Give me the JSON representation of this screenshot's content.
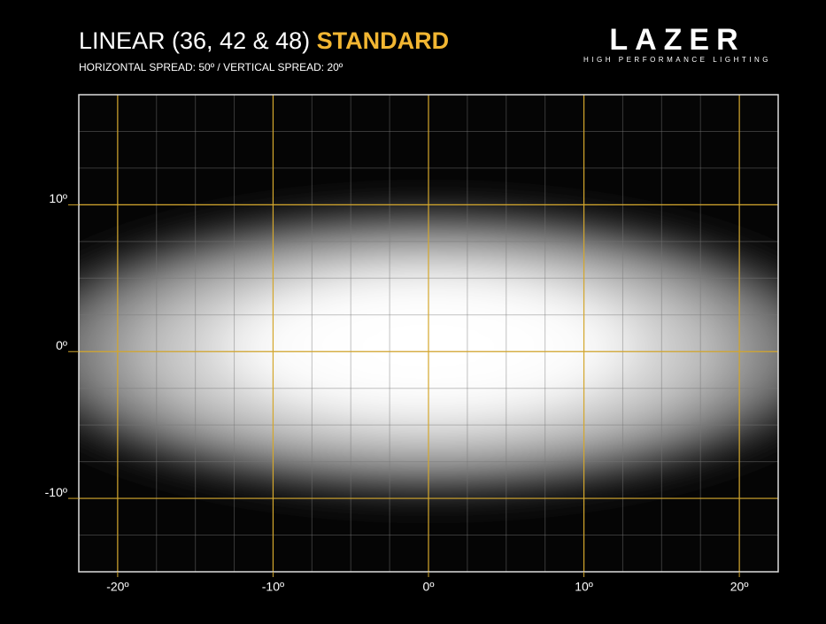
{
  "chart_data": {
    "type": "beam",
    "title": "LINEAR (36, 42 & 48)",
    "title_highlight": "STANDARD",
    "subtitle": "HORIZONTAL SPREAD: 50º / VERTICAL SPREAD: 20º",
    "logo": "LAZER",
    "tagline": "HIGH PERFORMANCE LIGHTING",
    "xlim": [
      -22.5,
      22.5
    ],
    "ylim": [
      -15,
      17.5
    ],
    "xticks": [
      {
        "value": -20,
        "label": "-20º"
      },
      {
        "value": -10,
        "label": "-10º"
      },
      {
        "value": 0,
        "label": "0º"
      },
      {
        "value": 10,
        "label": "10º"
      },
      {
        "value": 20,
        "label": "20º"
      }
    ],
    "yticks": [
      {
        "value": 10,
        "label": "10º"
      },
      {
        "value": 0,
        "label": "0º"
      },
      {
        "value": -10,
        "label": "-10º"
      }
    ],
    "grid": true,
    "grid_color": "#d4a72c",
    "highlight_color": "#f2b632"
  }
}
